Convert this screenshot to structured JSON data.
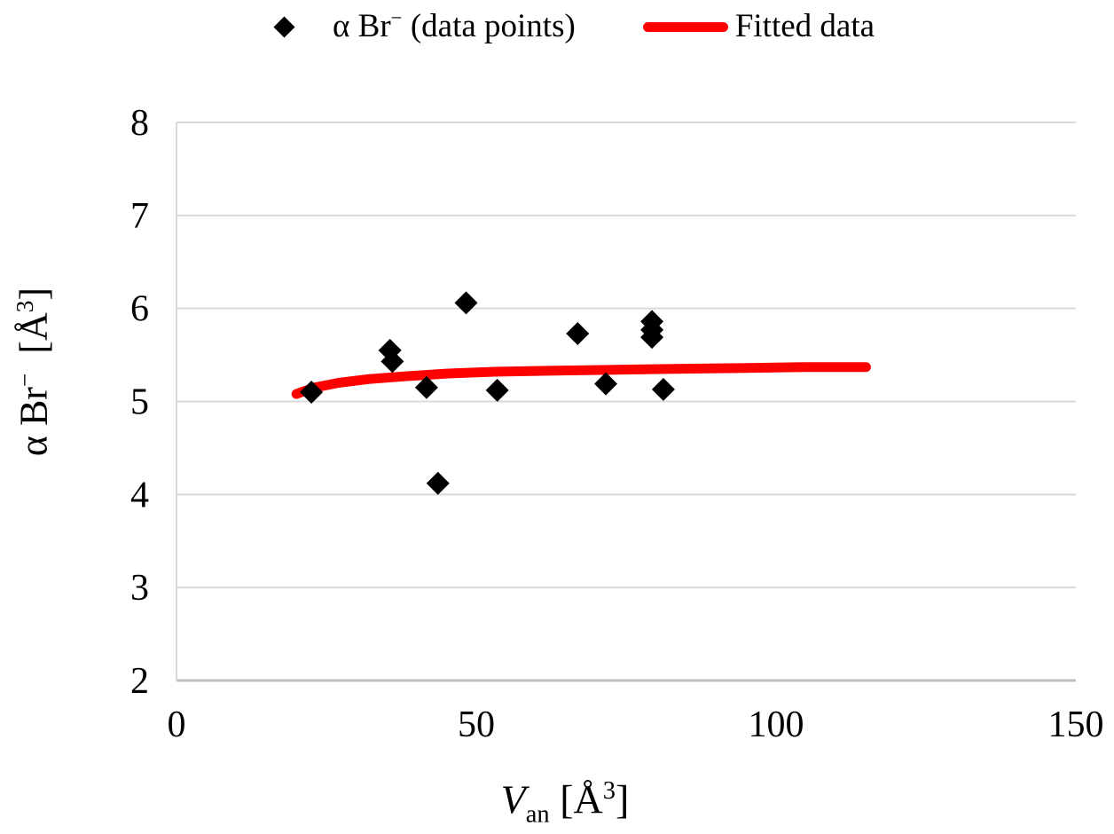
{
  "legend": {
    "items": [
      {
        "label_pre": "α Br",
        "label_sup": "−",
        "label_post": " (data points)",
        "marker": "black-diamond"
      },
      {
        "label": "Fitted data",
        "marker": "red-line"
      }
    ]
  },
  "axes": {
    "y_title": {
      "pre": "α Br",
      "sup": "−",
      "mid": " [Å",
      "unit_sup": "3",
      "post": "]"
    },
    "x_title": {
      "var": "V",
      "sub": "an",
      "mid": " [Å",
      "unit_sup": "3",
      "post": "]"
    }
  },
  "chart_data": {
    "type": "scatter",
    "title": "",
    "xlabel": "V_an [Å^3]",
    "ylabel": "α Br^− [Å^3]",
    "xlim": [
      0,
      150
    ],
    "ylim": [
      2,
      8
    ],
    "xticks": [
      0,
      50,
      100,
      150
    ],
    "yticks": [
      8,
      7,
      6,
      5,
      4,
      3,
      2
    ],
    "grid": "horizontal",
    "legend_position": "top-center",
    "series": [
      {
        "name": "α Br− (data points)",
        "type": "scatter",
        "marker": "diamond",
        "color": "#000000",
        "points": [
          [
            22.5,
            5.1
          ],
          [
            35.6,
            5.55
          ],
          [
            36.0,
            5.43
          ],
          [
            41.7,
            5.15
          ],
          [
            43.6,
            4.12
          ],
          [
            48.3,
            6.06
          ],
          [
            53.5,
            5.12
          ],
          [
            66.9,
            5.73
          ],
          [
            71.6,
            5.19
          ],
          [
            79.3,
            5.86
          ],
          [
            79.3,
            5.77
          ],
          [
            79.3,
            5.69
          ],
          [
            81.2,
            5.13
          ]
        ]
      },
      {
        "name": "Fitted data",
        "type": "line",
        "color": "#fe0000",
        "points": [
          [
            20,
            5.08
          ],
          [
            23,
            5.15
          ],
          [
            27,
            5.2
          ],
          [
            32,
            5.24
          ],
          [
            38,
            5.27
          ],
          [
            45,
            5.3
          ],
          [
            53,
            5.32
          ],
          [
            62,
            5.33
          ],
          [
            72,
            5.34
          ],
          [
            83,
            5.35
          ],
          [
            95,
            5.36
          ],
          [
            105,
            5.37
          ],
          [
            115,
            5.37
          ]
        ]
      }
    ],
    "colors": {
      "grid": "#d9d9d9",
      "axis": "#bfbfbf",
      "points": "#000000",
      "fit_line": "#fe0000"
    }
  }
}
